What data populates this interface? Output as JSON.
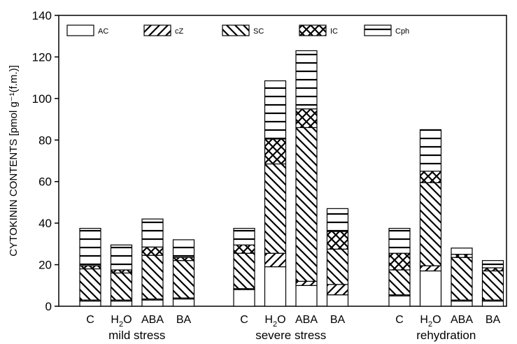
{
  "chart_data": {
    "type": "bar",
    "stacked": true,
    "ylabel": "CYTOKININ CONTENTS [pmol g⁻¹(f.m.)]",
    "ylim": [
      0,
      140
    ],
    "yticks": [
      0,
      20,
      40,
      60,
      80,
      100,
      120,
      140
    ],
    "legend": "top (single row inside plot)",
    "grid": false,
    "groups": [
      {
        "label": "mild stress",
        "categories": [
          "C",
          "H₂O",
          "ABA",
          "BA"
        ]
      },
      {
        "label": "severe stress",
        "categories": [
          "C",
          "H₂O",
          "ABA",
          "BA"
        ]
      },
      {
        "label": "rehydration",
        "categories": [
          "C",
          "H₂O",
          "ABA",
          "BA"
        ]
      }
    ],
    "series": [
      {
        "name": "AC",
        "pattern": "blank",
        "values": [
          2.5,
          2.5,
          3.0,
          3.5,
          8.0,
          19.0,
          10.0,
          5.5,
          5.0,
          17.0,
          2.5,
          2.5
        ]
      },
      {
        "name": "cZ",
        "pattern": "forward-hatch",
        "values": [
          0.5,
          0.5,
          0.5,
          0.5,
          0.5,
          6.5,
          2.0,
          5.0,
          0.5,
          2.5,
          0.5,
          0.5
        ]
      },
      {
        "name": "SC",
        "pattern": "backward-hatch",
        "values": [
          15.0,
          13.0,
          21.0,
          18.0,
          17.0,
          43.0,
          74.0,
          17.0,
          12.0,
          40.0,
          20.5,
          14.0
        ]
      },
      {
        "name": "IC",
        "pattern": "cross-hatch",
        "values": [
          1.5,
          1.5,
          4.0,
          1.5,
          4.0,
          12.0,
          9.0,
          8.5,
          8.0,
          5.5,
          1.5,
          1.5
        ]
      },
      {
        "name": "Cph",
        "pattern": "horizontal-lines",
        "values": [
          18.0,
          12.0,
          13.5,
          8.5,
          8.0,
          28.0,
          28.0,
          11.0,
          12.0,
          20.0,
          3.0,
          3.5
        ]
      }
    ]
  }
}
